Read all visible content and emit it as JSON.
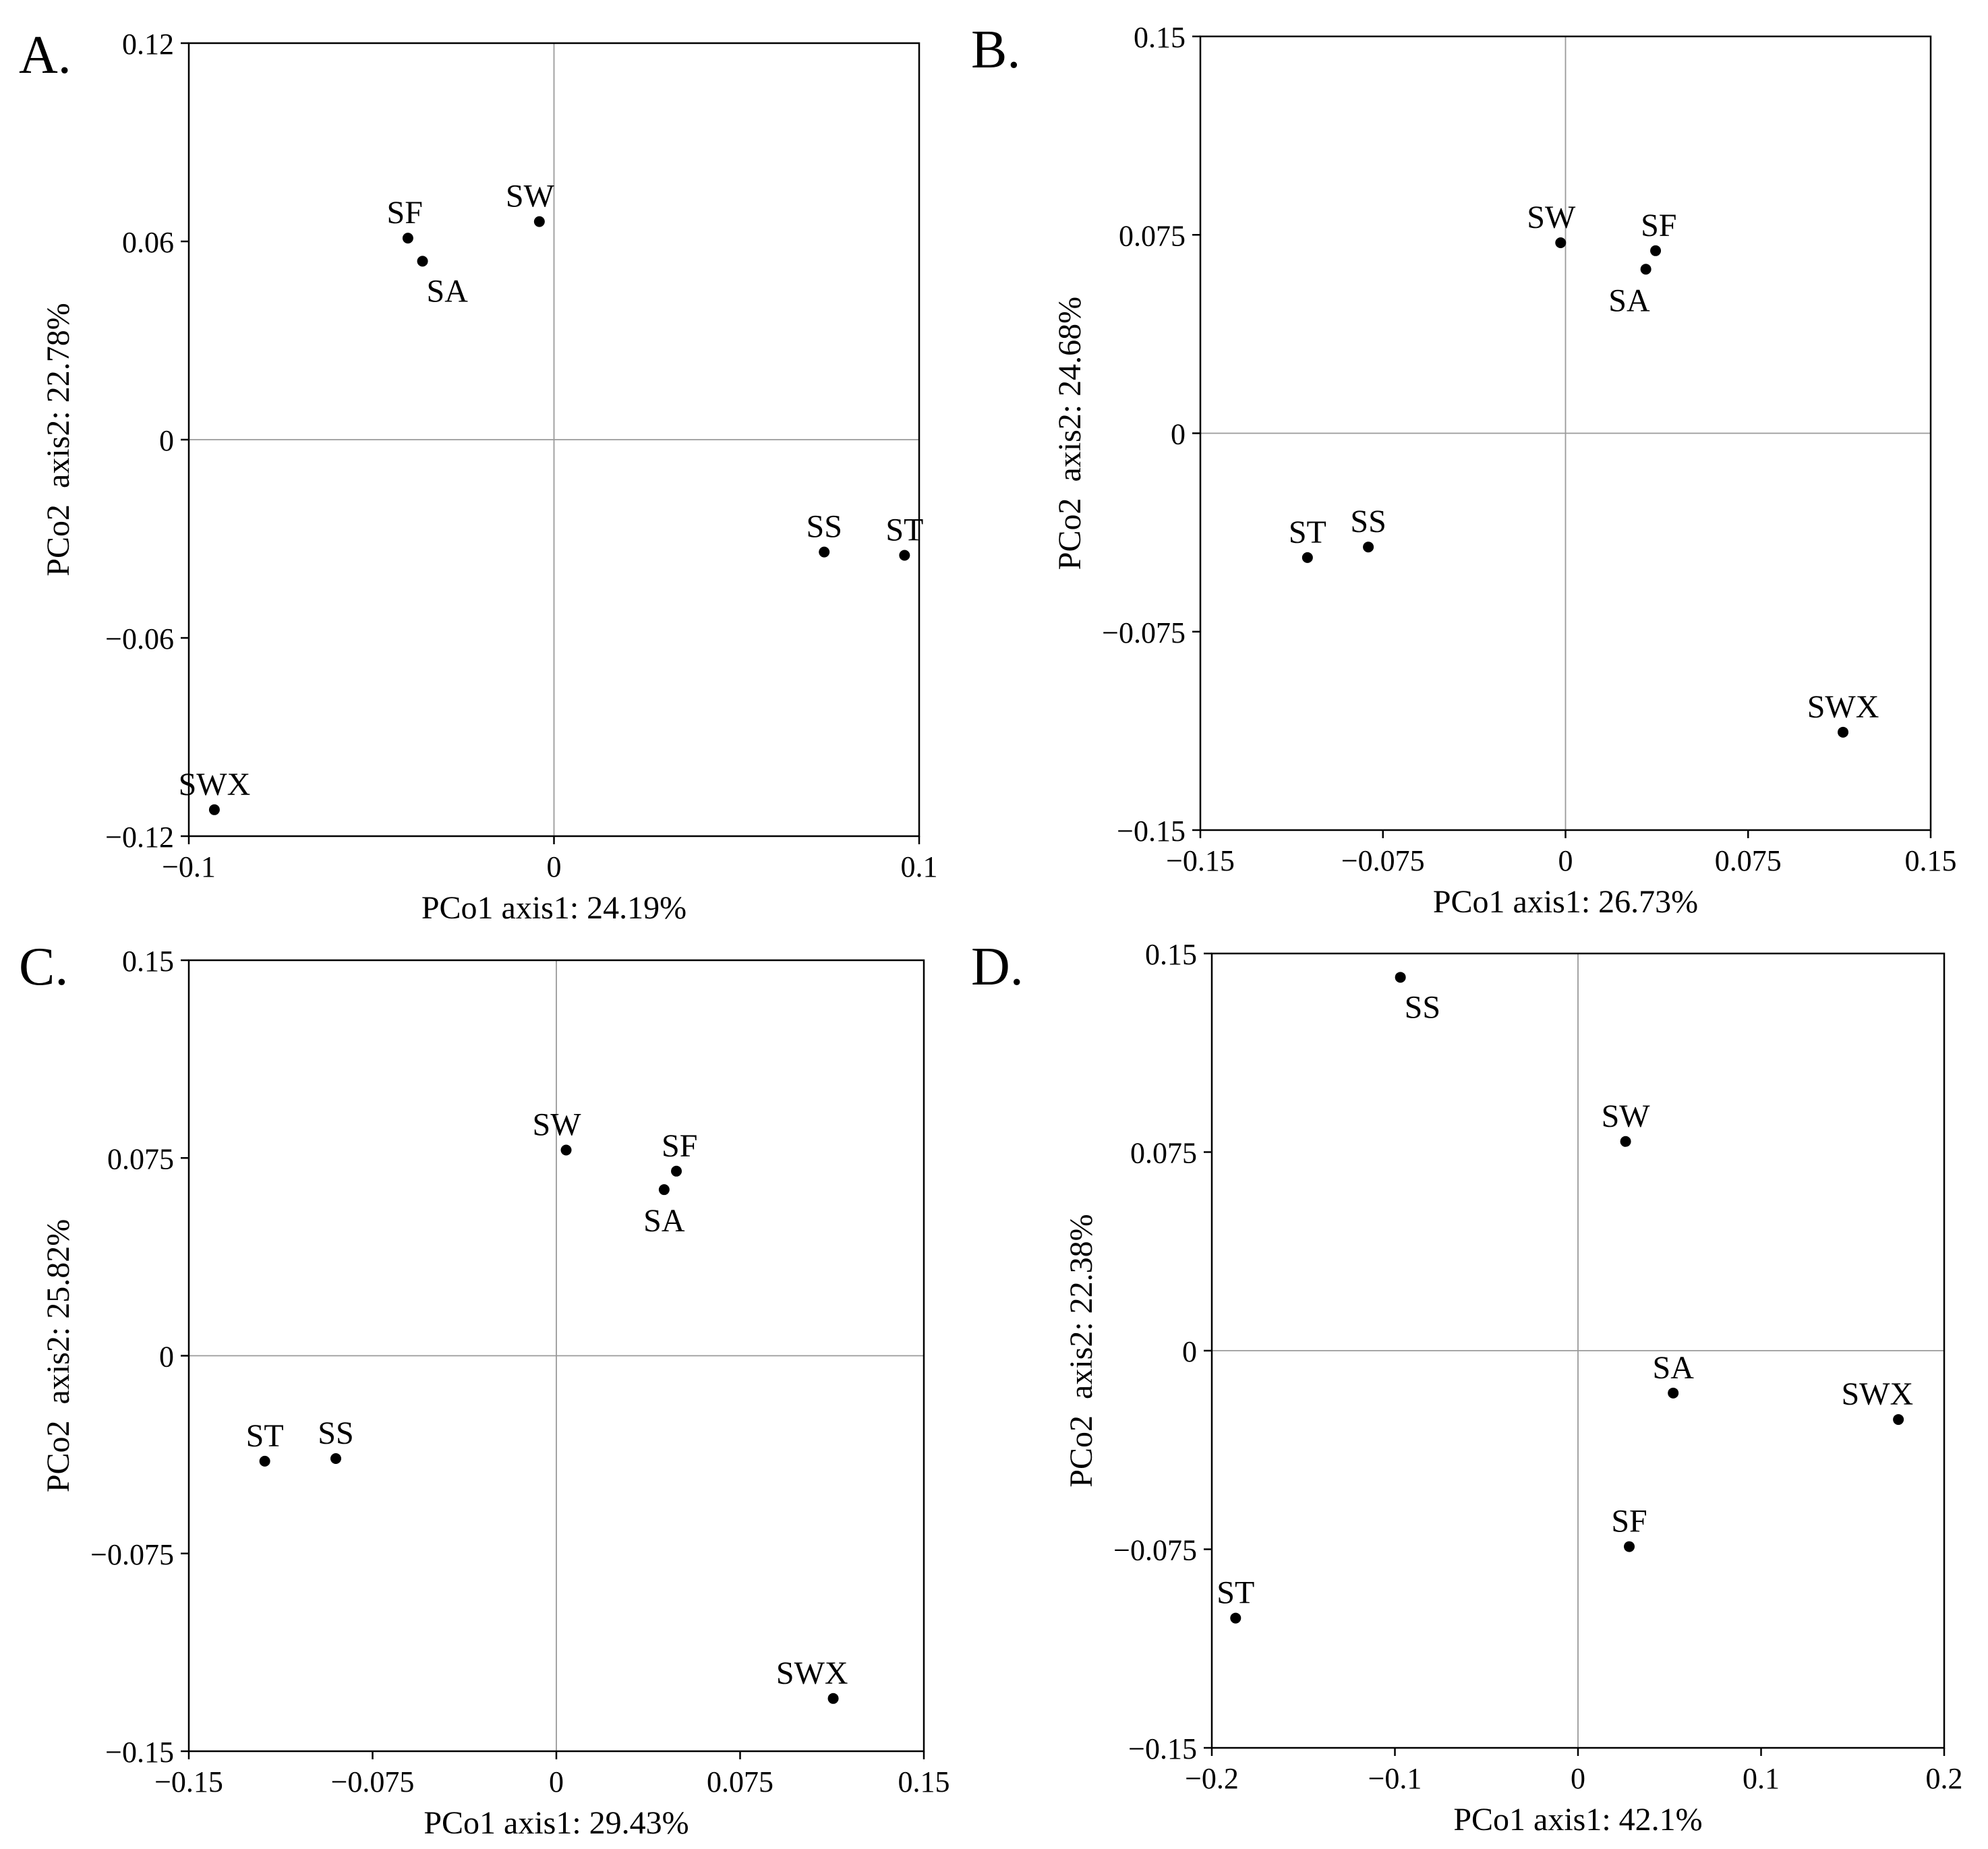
{
  "chart_data": [
    {
      "type": "scatter",
      "panel_label": "A.",
      "xlabel": "PCo1 axis1: 24.19%",
      "ylabel": "PCo2  axis2: 22.78%",
      "xlim": [
        -0.1,
        0.1
      ],
      "ylim": [
        -0.12,
        0.12
      ],
      "xticks": [
        -0.1,
        0,
        0.1
      ],
      "yticks": [
        -0.12,
        -0.06,
        0,
        0.06,
        0.12
      ],
      "xtick_labels": [
        "−0.1",
        "0",
        "0.1"
      ],
      "ytick_labels": [
        "−0.12",
        "−0.06",
        "0",
        "0.06",
        "0.12"
      ],
      "grid": "zero lines",
      "points": [
        {
          "name": "SF",
          "x": -0.04,
          "y": 0.061,
          "label_pos": "above-left"
        },
        {
          "name": "SA",
          "x": -0.036,
          "y": 0.054,
          "label_pos": "below-right"
        },
        {
          "name": "SW",
          "x": -0.004,
          "y": 0.066,
          "label_pos": "above-left"
        },
        {
          "name": "SS",
          "x": 0.074,
          "y": -0.034,
          "label_pos": "above"
        },
        {
          "name": "ST",
          "x": 0.096,
          "y": -0.035,
          "label_pos": "above"
        },
        {
          "name": "SWX",
          "x": -0.093,
          "y": -0.112,
          "label_pos": "above"
        }
      ]
    },
    {
      "type": "scatter",
      "panel_label": "B.",
      "xlabel": "PCo1  axis1: 26.73%",
      "ylabel": "PCo2  axis2: 24.68%",
      "xlim": [
        -0.15,
        0.15
      ],
      "ylim": [
        -0.15,
        0.15
      ],
      "xticks": [
        -0.15,
        -0.075,
        0,
        0.075,
        0.15
      ],
      "yticks": [
        -0.15,
        -0.075,
        0,
        0.075,
        0.15
      ],
      "xtick_labels": [
        "−0.15",
        "−0.075",
        "0",
        "0.075",
        "0.15"
      ],
      "ytick_labels": [
        "−0.15",
        "−0.075",
        "0",
        "0.075",
        "0.15"
      ],
      "grid": "zero lines",
      "points": [
        {
          "name": "SW",
          "x": -0.002,
          "y": 0.072,
          "label_pos": "above-left"
        },
        {
          "name": "SF",
          "x": 0.037,
          "y": 0.069,
          "label_pos": "above-right"
        },
        {
          "name": "SA",
          "x": 0.033,
          "y": 0.062,
          "label_pos": "below-left"
        },
        {
          "name": "ST",
          "x": -0.106,
          "y": -0.047,
          "label_pos": "above"
        },
        {
          "name": "SS",
          "x": -0.081,
          "y": -0.043,
          "label_pos": "above"
        },
        {
          "name": "SWX",
          "x": 0.114,
          "y": -0.113,
          "label_pos": "above"
        }
      ]
    },
    {
      "type": "scatter",
      "panel_label": "C.",
      "xlabel": "PCo1 axis1: 29.43%",
      "ylabel": "PCo2  axis2: 25.82%",
      "xlim": [
        -0.15,
        0.15
      ],
      "ylim": [
        -0.15,
        0.15
      ],
      "xticks": [
        -0.15,
        -0.075,
        0,
        0.075,
        0.15
      ],
      "yticks": [
        -0.15,
        -0.075,
        0,
        0.075,
        0.15
      ],
      "xtick_labels": [
        "−0.15",
        "−0.075",
        "0",
        "0.075",
        "0.15"
      ],
      "ytick_labels": [
        "−0.15",
        "−0.075",
        "0",
        "0.075",
        "0.15"
      ],
      "grid": "zero lines",
      "points": [
        {
          "name": "SW",
          "x": 0.004,
          "y": 0.078,
          "label_pos": "above-left"
        },
        {
          "name": "SF",
          "x": 0.049,
          "y": 0.07,
          "label_pos": "above-right"
        },
        {
          "name": "SA",
          "x": 0.044,
          "y": 0.063,
          "label_pos": "below"
        },
        {
          "name": "ST",
          "x": -0.119,
          "y": -0.04,
          "label_pos": "above"
        },
        {
          "name": "SS",
          "x": -0.09,
          "y": -0.039,
          "label_pos": "above"
        },
        {
          "name": "SWX",
          "x": 0.113,
          "y": -0.13,
          "label_pos": "above-left"
        }
      ]
    },
    {
      "type": "scatter",
      "panel_label": "D.",
      "xlabel": "PCo1 axis1: 42.1%",
      "ylabel": "PCo2  axis2: 22.38%",
      "xlim": [
        -0.2,
        0.2
      ],
      "ylim": [
        -0.15,
        0.15
      ],
      "xticks": [
        -0.2,
        -0.1,
        0,
        0.1,
        0.2
      ],
      "yticks": [
        -0.15,
        -0.075,
        0,
        0.075,
        0.15
      ],
      "xtick_labels": [
        "−0.2",
        "−0.1",
        "0",
        "0.1",
        "0.2"
      ],
      "ytick_labels": [
        "−0.15",
        "−0.075",
        "0",
        "0.075",
        "0.15"
      ],
      "grid": "zero lines",
      "points": [
        {
          "name": "SS",
          "x": -0.097,
          "y": 0.141,
          "label_pos": "below-right"
        },
        {
          "name": "SW",
          "x": 0.026,
          "y": 0.079,
          "label_pos": "above"
        },
        {
          "name": "SA",
          "x": 0.052,
          "y": -0.016,
          "label_pos": "above"
        },
        {
          "name": "SWX",
          "x": 0.175,
          "y": -0.026,
          "label_pos": "above-left"
        },
        {
          "name": "SF",
          "x": 0.028,
          "y": -0.074,
          "label_pos": "above"
        },
        {
          "name": "ST",
          "x": -0.187,
          "y": -0.101,
          "label_pos": "above"
        }
      ]
    }
  ]
}
